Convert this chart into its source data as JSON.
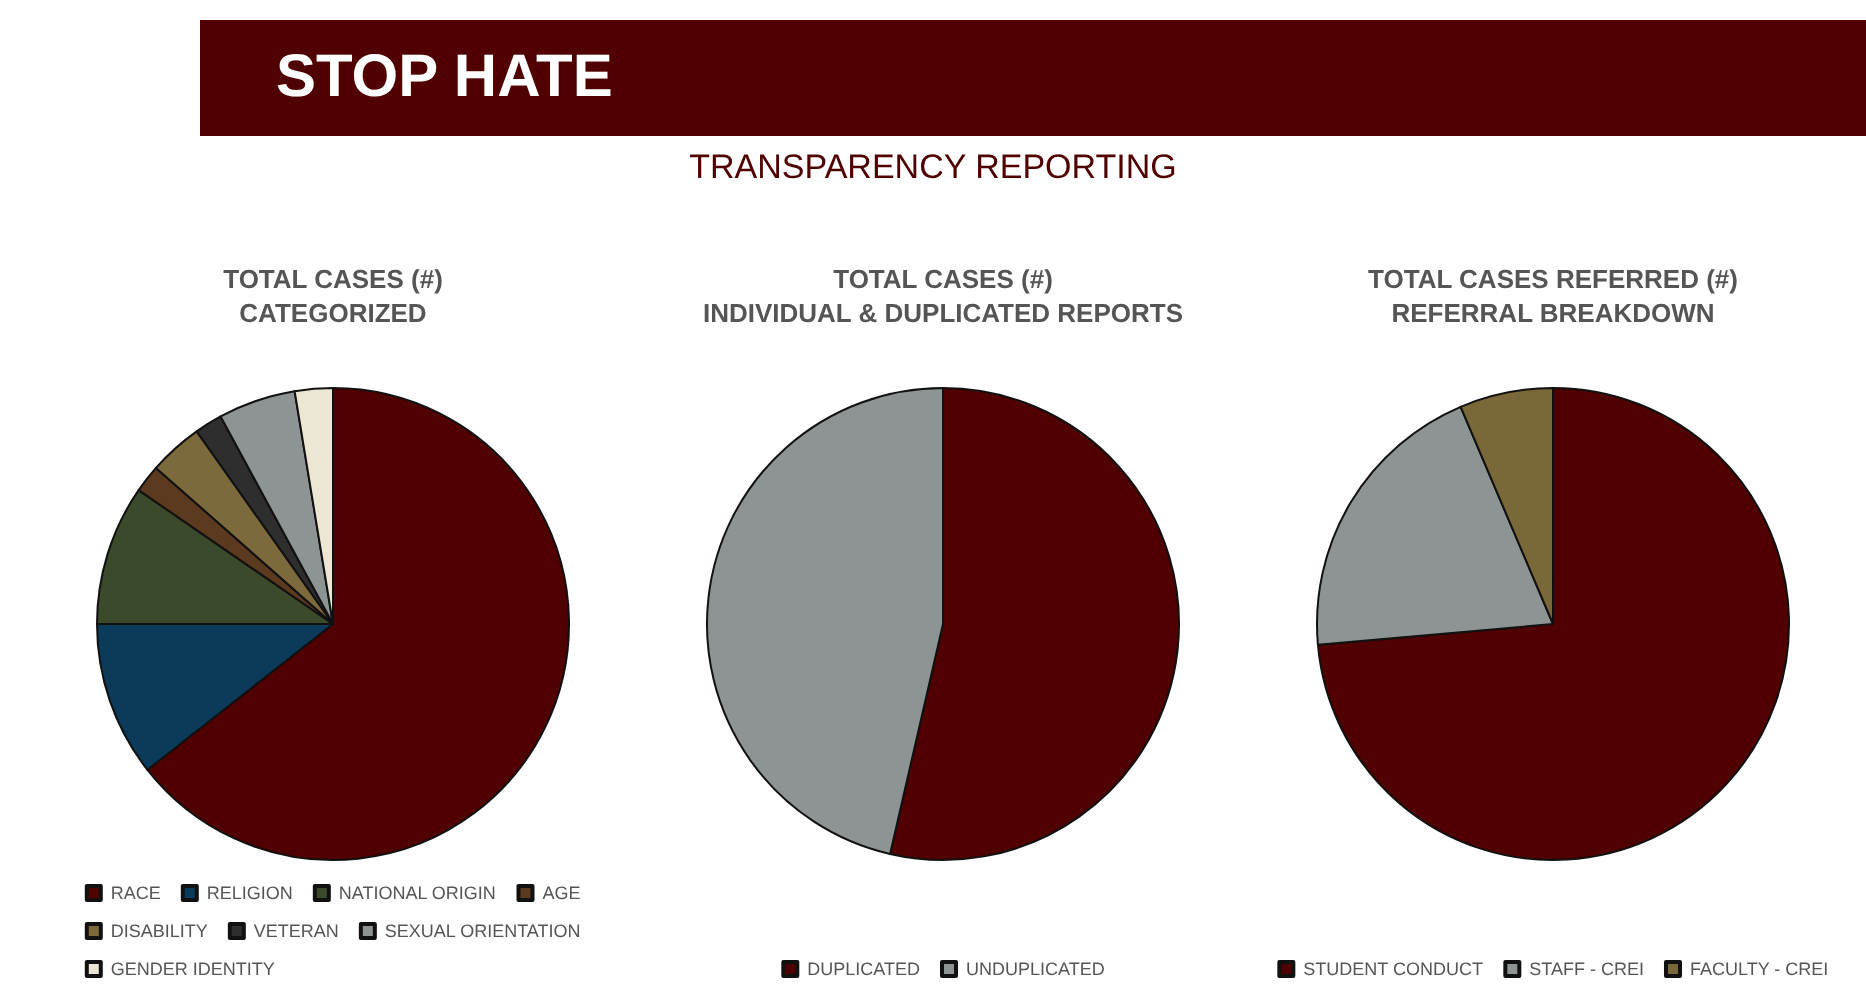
{
  "chart_data": [
    {
      "type": "other",
      "title": "STOP HATE",
      "subtitle": "TRANSPARENCY REPORTING"
    },
    {
      "type": "pie",
      "title": "TOTAL CASES (#)",
      "subtitle": "CATEGORIZED",
      "legend": "bottom",
      "categories": [
        "RACE",
        "RELIGION",
        "NATIONAL ORIGIN",
        "AGE",
        "DISABILITY",
        "VETERAN",
        "SEXUAL ORIENTATION",
        "GENDER IDENTITY"
      ],
      "values": [
        64.4,
        10.6,
        9.6,
        1.9,
        3.7,
        1.9,
        5.3,
        2.6
      ],
      "colors": [
        "#500000",
        "#0b3a5a",
        "#3b4a2b",
        "#5b3a1f",
        "#7d6a3c",
        "#2e2e2e",
        "#8e9394",
        "#ece6d4"
      ]
    },
    {
      "type": "pie",
      "title": "TOTAL CASES (#)",
      "subtitle": "INDIVIDUAL & DUPLICATED REPORTS",
      "legend": "bottom",
      "categories": [
        "DUPLICATED",
        "UNDUPLICATED"
      ],
      "values": [
        53.6,
        46.4
      ],
      "colors": [
        "#500000",
        "#8e9394"
      ]
    },
    {
      "type": "pie",
      "title": "TOTAL CASES REFERRED (#)",
      "subtitle": "REFERRAL BREAKDOWN",
      "legend": "bottom",
      "categories": [
        "STUDENT CONDUCT",
        "STAFF - CREI",
        "FACULTY - CREI"
      ],
      "values": [
        73.6,
        20.0,
        6.4
      ],
      "colors": [
        "#500000",
        "#8e9394",
        "#7a6838"
      ]
    }
  ]
}
